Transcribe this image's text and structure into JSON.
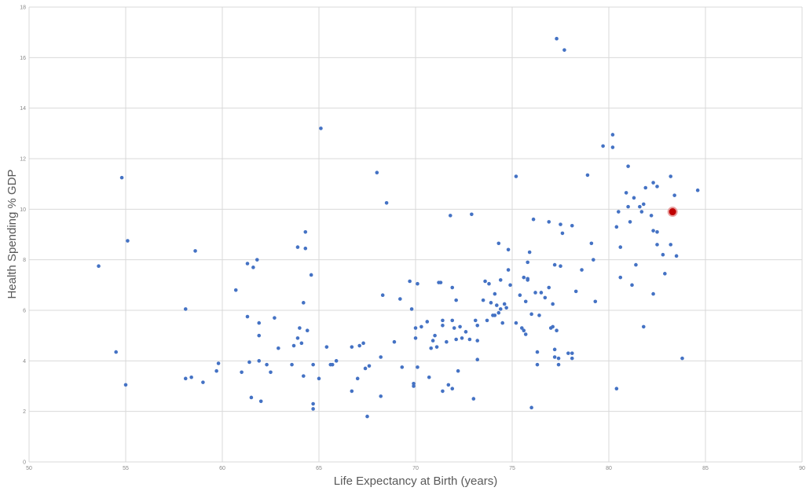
{
  "chart_data": {
    "type": "scatter",
    "xlabel": "Life Expectancy at Birth (years)",
    "ylabel": "Health Spending % GDP",
    "xlim": [
      50,
      90
    ],
    "ylim": [
      0,
      18
    ],
    "x_ticks": [
      50,
      55,
      60,
      65,
      70,
      75,
      80,
      85,
      90
    ],
    "y_ticks": [
      0,
      2,
      4,
      6,
      8,
      10,
      12,
      14,
      16,
      18
    ],
    "grid": true,
    "colors": {
      "point": "#4472c4",
      "highlight": "#c00000",
      "highlight_ring": "#e8a0a0"
    },
    "highlight": {
      "x": 83.3,
      "y": 9.9
    },
    "points": [
      [
        53.6,
        7.75
      ],
      [
        54.5,
        4.35
      ],
      [
        54.8,
        11.25
      ],
      [
        55.0,
        3.05
      ],
      [
        55.1,
        8.75
      ],
      [
        58.1,
        3.3
      ],
      [
        58.1,
        6.05
      ],
      [
        58.4,
        3.35
      ],
      [
        58.6,
        8.35
      ],
      [
        59.0,
        3.15
      ],
      [
        59.7,
        3.6
      ],
      [
        59.8,
        3.9
      ],
      [
        60.7,
        6.8
      ],
      [
        61.0,
        3.55
      ],
      [
        61.3,
        7.85
      ],
      [
        61.3,
        5.75
      ],
      [
        61.4,
        3.95
      ],
      [
        61.5,
        2.55
      ],
      [
        61.6,
        7.7
      ],
      [
        61.8,
        8.0
      ],
      [
        61.9,
        4.0
      ],
      [
        61.9,
        5.0
      ],
      [
        61.9,
        5.5
      ],
      [
        62.0,
        2.4
      ],
      [
        62.3,
        3.85
      ],
      [
        62.5,
        3.55
      ],
      [
        62.7,
        5.7
      ],
      [
        62.9,
        4.5
      ],
      [
        63.6,
        3.85
      ],
      [
        63.7,
        4.6
      ],
      [
        63.9,
        4.9
      ],
      [
        63.9,
        8.5
      ],
      [
        64.0,
        5.3
      ],
      [
        64.1,
        4.7
      ],
      [
        64.2,
        6.3
      ],
      [
        64.2,
        3.4
      ],
      [
        64.3,
        8.45
      ],
      [
        64.3,
        9.1
      ],
      [
        64.4,
        5.2
      ],
      [
        64.6,
        7.4
      ],
      [
        64.7,
        2.3
      ],
      [
        64.7,
        2.1
      ],
      [
        64.7,
        3.85
      ],
      [
        65.0,
        3.3
      ],
      [
        65.1,
        13.2
      ],
      [
        65.4,
        4.55
      ],
      [
        65.6,
        3.85
      ],
      [
        65.7,
        3.85
      ],
      [
        65.9,
        4.0
      ],
      [
        66.7,
        4.55
      ],
      [
        66.7,
        2.8
      ],
      [
        67.0,
        3.3
      ],
      [
        67.1,
        4.6
      ],
      [
        67.3,
        4.7
      ],
      [
        67.4,
        3.7
      ],
      [
        67.5,
        1.8
      ],
      [
        67.6,
        3.8
      ],
      [
        68.0,
        11.45
      ],
      [
        68.2,
        4.15
      ],
      [
        68.2,
        2.6
      ],
      [
        68.3,
        6.6
      ],
      [
        68.5,
        10.25
      ],
      [
        68.9,
        4.75
      ],
      [
        69.2,
        6.45
      ],
      [
        69.3,
        3.75
      ],
      [
        69.7,
        7.15
      ],
      [
        69.8,
        6.05
      ],
      [
        69.9,
        3.1
      ],
      [
        69.9,
        3.0
      ],
      [
        70.0,
        5.3
      ],
      [
        70.0,
        4.9
      ],
      [
        70.1,
        3.75
      ],
      [
        70.1,
        7.05
      ],
      [
        70.3,
        5.35
      ],
      [
        70.6,
        5.55
      ],
      [
        70.7,
        3.35
      ],
      [
        70.8,
        4.5
      ],
      [
        70.9,
        4.8
      ],
      [
        71.0,
        5.0
      ],
      [
        71.1,
        4.55
      ],
      [
        71.2,
        7.1
      ],
      [
        71.3,
        7.1
      ],
      [
        71.4,
        5.4
      ],
      [
        71.4,
        5.6
      ],
      [
        71.4,
        2.8
      ],
      [
        71.6,
        4.75
      ],
      [
        71.7,
        3.05
      ],
      [
        71.8,
        9.75
      ],
      [
        71.9,
        5.6
      ],
      [
        71.9,
        6.9
      ],
      [
        71.9,
        2.9
      ],
      [
        72.0,
        5.3
      ],
      [
        72.1,
        4.85
      ],
      [
        72.1,
        6.4
      ],
      [
        72.2,
        3.6
      ],
      [
        72.3,
        5.35
      ],
      [
        72.4,
        4.9
      ],
      [
        72.6,
        5.15
      ],
      [
        72.8,
        4.85
      ],
      [
        72.9,
        9.8
      ],
      [
        73.0,
        2.5
      ],
      [
        73.1,
        5.6
      ],
      [
        73.2,
        5.4
      ],
      [
        73.2,
        4.8
      ],
      [
        73.2,
        4.05
      ],
      [
        73.5,
        6.4
      ],
      [
        73.6,
        7.15
      ],
      [
        73.7,
        5.6
      ],
      [
        73.8,
        7.05
      ],
      [
        73.9,
        6.3
      ],
      [
        74.0,
        5.8
      ],
      [
        74.1,
        6.65
      ],
      [
        74.1,
        5.8
      ],
      [
        74.2,
        6.2
      ],
      [
        74.3,
        5.9
      ],
      [
        74.3,
        8.65
      ],
      [
        74.4,
        7.2
      ],
      [
        74.4,
        6.05
      ],
      [
        74.5,
        5.5
      ],
      [
        74.6,
        6.25
      ],
      [
        74.7,
        6.1
      ],
      [
        74.8,
        8.4
      ],
      [
        74.8,
        7.6
      ],
      [
        74.9,
        7.0
      ],
      [
        75.2,
        5.5
      ],
      [
        75.2,
        11.3
      ],
      [
        75.4,
        6.6
      ],
      [
        75.5,
        5.3
      ],
      [
        75.6,
        5.2
      ],
      [
        75.6,
        7.3
      ],
      [
        75.7,
        5.05
      ],
      [
        75.7,
        6.35
      ],
      [
        75.8,
        7.2
      ],
      [
        75.8,
        7.9
      ],
      [
        75.8,
        7.25
      ],
      [
        75.9,
        8.3
      ],
      [
        76.0,
        5.85
      ],
      [
        76.0,
        2.15
      ],
      [
        76.1,
        9.6
      ],
      [
        76.2,
        6.7
      ],
      [
        76.3,
        4.35
      ],
      [
        76.3,
        3.85
      ],
      [
        76.4,
        5.8
      ],
      [
        76.5,
        6.7
      ],
      [
        76.7,
        6.5
      ],
      [
        76.9,
        9.5
      ],
      [
        76.9,
        6.9
      ],
      [
        77.0,
        5.3
      ],
      [
        77.1,
        5.35
      ],
      [
        77.1,
        6.25
      ],
      [
        77.2,
        4.45
      ],
      [
        77.2,
        4.15
      ],
      [
        77.2,
        7.8
      ],
      [
        77.3,
        16.75
      ],
      [
        77.3,
        5.2
      ],
      [
        77.4,
        3.85
      ],
      [
        77.4,
        4.1
      ],
      [
        77.5,
        7.75
      ],
      [
        77.5,
        9.4
      ],
      [
        77.6,
        9.05
      ],
      [
        77.7,
        16.3
      ],
      [
        77.9,
        4.3
      ],
      [
        78.1,
        9.35
      ],
      [
        78.1,
        4.3
      ],
      [
        78.1,
        4.1
      ],
      [
        78.3,
        6.75
      ],
      [
        78.6,
        7.6
      ],
      [
        78.9,
        11.35
      ],
      [
        79.1,
        8.65
      ],
      [
        79.2,
        8.0
      ],
      [
        79.3,
        6.35
      ],
      [
        79.7,
        12.5
      ],
      [
        80.2,
        12.95
      ],
      [
        80.2,
        12.45
      ],
      [
        80.4,
        2.9
      ],
      [
        80.4,
        9.3
      ],
      [
        80.5,
        9.9
      ],
      [
        80.6,
        8.5
      ],
      [
        80.6,
        7.3
      ],
      [
        80.9,
        10.65
      ],
      [
        81.0,
        11.7
      ],
      [
        81.0,
        10.1
      ],
      [
        81.1,
        9.5
      ],
      [
        81.2,
        7.0
      ],
      [
        81.3,
        10.45
      ],
      [
        81.4,
        7.8
      ],
      [
        81.6,
        10.1
      ],
      [
        81.7,
        9.9
      ],
      [
        81.8,
        10.2
      ],
      [
        81.8,
        5.35
      ],
      [
        81.9,
        10.85
      ],
      [
        82.2,
        9.75
      ],
      [
        82.3,
        11.05
      ],
      [
        82.3,
        9.15
      ],
      [
        82.3,
        6.65
      ],
      [
        82.5,
        8.6
      ],
      [
        82.5,
        9.1
      ],
      [
        82.5,
        10.9
      ],
      [
        82.8,
        8.2
      ],
      [
        82.9,
        7.45
      ],
      [
        83.2,
        11.3
      ],
      [
        83.2,
        8.6
      ],
      [
        83.4,
        10.55
      ],
      [
        83.5,
        8.15
      ],
      [
        83.8,
        4.1
      ],
      [
        84.6,
        10.75
      ]
    ]
  }
}
